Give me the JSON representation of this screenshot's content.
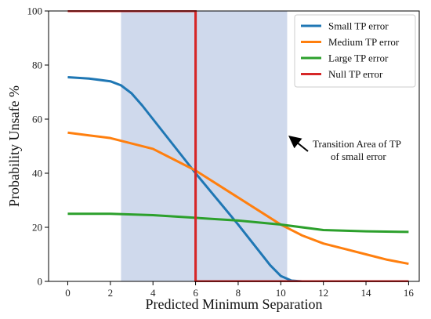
{
  "chart_data": {
    "type": "line",
    "xlabel": "Predicted Minimum Separation",
    "ylabel": "Probability Unsafe %",
    "xlim": [
      -0.9,
      16.5
    ],
    "ylim": [
      0,
      100
    ],
    "xticks": [
      0,
      2,
      4,
      6,
      8,
      10,
      12,
      14,
      16
    ],
    "yticks": [
      0,
      20,
      40,
      60,
      80,
      100
    ],
    "grid": false,
    "legend_position": "top-right",
    "shaded_region": {
      "x_start": 2.5,
      "x_end": 10.3,
      "color": "#cfd9ec"
    },
    "vertical_line": {
      "x": 6,
      "color": "#d62728"
    },
    "annotation": {
      "lines": [
        "Transition Area of TP",
        "of small error"
      ],
      "arrow_to": {
        "x": 10.4,
        "y": 50
      }
    },
    "series": [
      {
        "name": "Small TP error",
        "color": "#1f77b4",
        "x": [
          0,
          1,
          2,
          2.5,
          3,
          3.5,
          4,
          5,
          6,
          7,
          8,
          9,
          9.5,
          10,
          10.5,
          11,
          12,
          13,
          14,
          15,
          16
        ],
        "y": [
          75.5,
          75,
          74,
          72.5,
          69.5,
          65,
          60,
          50,
          40,
          30.5,
          21,
          11,
          6,
          2,
          0.3,
          0,
          0,
          0,
          0,
          0,
          0
        ]
      },
      {
        "name": "Medium TP error",
        "color": "#ff7f0e",
        "x": [
          0,
          1,
          2,
          3,
          4,
          5,
          6,
          7,
          8,
          9,
          10,
          11,
          12,
          13,
          14,
          15,
          16
        ],
        "y": [
          55,
          54,
          53,
          51,
          49,
          45,
          41,
          36,
          31,
          26,
          21,
          17,
          14,
          12,
          10,
          8,
          6.5
        ]
      },
      {
        "name": "Large TP error",
        "color": "#2ca02c",
        "x": [
          0,
          2,
          4,
          6,
          8,
          10,
          12,
          14,
          16
        ],
        "y": [
          25,
          25,
          24.5,
          23.5,
          22.5,
          21,
          19,
          18.5,
          18.3
        ]
      },
      {
        "name": "Null TP error",
        "color": "#d62728",
        "x": [
          0,
          6,
          6,
          6.05,
          16
        ],
        "y": [
          100,
          100,
          0,
          0,
          0
        ]
      }
    ]
  }
}
